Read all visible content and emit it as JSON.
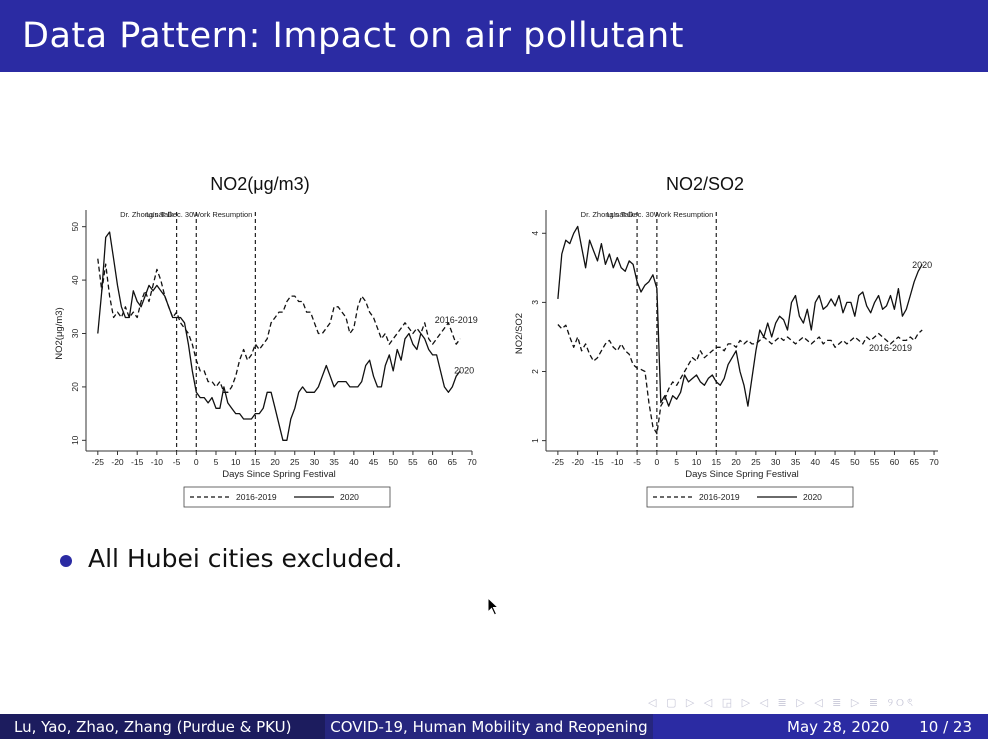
{
  "slide": {
    "title": "Data Pattern: Impact on air pollutant",
    "bullet": "All Hubei cities excluded.",
    "nav_icons": "◁ ▢ ▷ ◁ ◲ ▷ ◁ ≣ ▷ ◁ ≣ ▷   ≣   ୨୦ৎ"
  },
  "footer": {
    "authors": "Lu, Yao, Zhao, Zhang (Purdue & PKU)",
    "talk_title": "COVID-19, Human Mobility and Reopening",
    "date": "May 28, 2020",
    "page": "10 / 23"
  },
  "colors": {
    "header_bar": "#2b2ba3",
    "footer_left": "#1c1c5e",
    "footer_mid": "#26267e",
    "footer_right": "#2b2ba3",
    "bullet": "#2b2ba3"
  },
  "chart_data": [
    {
      "type": "line",
      "title": "NO2(μg/m3)",
      "xlabel": "Days Since Spring Festival",
      "ylabel": "NO2(μg/m3)",
      "xlim": [
        -28,
        70
      ],
      "ylim": [
        8,
        52
      ],
      "xticks": [
        -25,
        -20,
        -15,
        -10,
        -5,
        0,
        5,
        10,
        15,
        20,
        25,
        30,
        35,
        40,
        45,
        50,
        55,
        60,
        65,
        70
      ],
      "yticks": [
        10,
        20,
        30,
        40,
        50
      ],
      "annotations": [
        {
          "x": -5,
          "text": "Dr. Zhong's Talk"
        },
        {
          "x": 0,
          "text": "Lunar Dec. 30"
        },
        {
          "x": 15,
          "text": "Work Resumption"
        }
      ],
      "series_labels": [
        {
          "text": "2016-2019",
          "x": 66,
          "y": 32
        },
        {
          "text": "2020",
          "x": 68,
          "y": 22.5
        }
      ],
      "legend": [
        "2016-2019",
        "2020"
      ],
      "legend_position": "bottom",
      "series": [
        {
          "name": "2016-2019",
          "style": "dashed",
          "x": [
            -25,
            -24,
            -23,
            -22,
            -21,
            -20,
            -19,
            -18,
            -17,
            -16,
            -15,
            -14,
            -13,
            -12,
            -11,
            -10,
            -9,
            -8,
            -7,
            -6,
            -5,
            -4,
            -3,
            -2,
            -1,
            0,
            1,
            2,
            3,
            4,
            5,
            6,
            7,
            8,
            9,
            10,
            11,
            12,
            13,
            14,
            15,
            16,
            17,
            18,
            19,
            20,
            21,
            22,
            23,
            24,
            25,
            26,
            27,
            28,
            29,
            30,
            31,
            32,
            33,
            34,
            35,
            36,
            37,
            38,
            39,
            40,
            41,
            42,
            43,
            44,
            45,
            46,
            47,
            48,
            49,
            50,
            51,
            52,
            53,
            54,
            55,
            56,
            57,
            58,
            59,
            60,
            61,
            62,
            63,
            64,
            65,
            66,
            67
          ],
          "values": [
            44,
            38,
            43,
            37,
            33,
            34,
            33,
            35,
            33,
            34,
            33,
            36,
            38,
            36,
            39,
            42,
            40,
            37,
            35,
            33,
            34,
            32,
            31,
            30,
            28,
            25,
            23,
            23,
            21,
            21,
            20,
            21,
            19,
            19,
            20,
            22,
            25,
            27,
            25,
            26,
            28,
            27,
            28,
            29,
            32,
            33,
            34,
            34,
            36,
            37,
            37,
            36,
            36,
            34,
            34,
            32,
            30,
            30,
            31,
            32,
            35,
            35,
            34,
            33,
            30,
            31,
            35,
            37,
            36,
            34,
            33,
            31,
            29,
            30,
            28,
            29,
            30,
            31,
            32,
            31,
            30,
            31,
            30,
            32,
            29,
            28,
            29,
            30,
            31,
            32,
            30,
            28,
            29
          ]
        },
        {
          "name": "2020",
          "style": "solid",
          "x": [
            -25,
            -24,
            -23,
            -22,
            -21,
            -20,
            -19,
            -18,
            -17,
            -16,
            -15,
            -14,
            -13,
            -12,
            -11,
            -10,
            -9,
            -8,
            -7,
            -6,
            -5,
            -4,
            -3,
            -2,
            -1,
            0,
            1,
            2,
            3,
            4,
            5,
            6,
            7,
            8,
            9,
            10,
            11,
            12,
            13,
            14,
            15,
            16,
            17,
            18,
            19,
            20,
            21,
            22,
            23,
            24,
            25,
            26,
            27,
            28,
            29,
            30,
            31,
            32,
            33,
            34,
            35,
            36,
            37,
            38,
            39,
            40,
            41,
            42,
            43,
            44,
            45,
            46,
            47,
            48,
            49,
            50,
            51,
            52,
            53,
            54,
            55,
            56,
            57,
            58,
            59,
            60,
            61,
            62,
            63,
            64,
            65,
            66,
            67
          ],
          "values": [
            30,
            38,
            48,
            49,
            44,
            39,
            35,
            33,
            33,
            38,
            36,
            35,
            37,
            39,
            38,
            39,
            38,
            37,
            35,
            33,
            33,
            33,
            32,
            28,
            23,
            19,
            18,
            18,
            17,
            18,
            16,
            16,
            20,
            17,
            16,
            15,
            15,
            14,
            14,
            14,
            15,
            15,
            16,
            19,
            19,
            16,
            13,
            10,
            10,
            14,
            16,
            19,
            20,
            19,
            19,
            19,
            20,
            22,
            24,
            22,
            20,
            21,
            21,
            21,
            20,
            20,
            20,
            21,
            24,
            25,
            22,
            20,
            20,
            24,
            26,
            23,
            27,
            25,
            29,
            30,
            28,
            27,
            30,
            29,
            27,
            26,
            26,
            23,
            20,
            19,
            20,
            22,
            23
          ]
        }
      ]
    },
    {
      "type": "line",
      "title": "NO2/SO2",
      "xlabel": "Days Since Spring Festival",
      "ylabel": "NO2/SO2",
      "xlim": [
        -28,
        71
      ],
      "ylim": [
        0.85,
        4.25
      ],
      "xticks": [
        -25,
        -20,
        -15,
        -10,
        -5,
        0,
        5,
        10,
        15,
        20,
        25,
        30,
        35,
        40,
        45,
        50,
        55,
        60,
        65,
        70
      ],
      "yticks": [
        1,
        2,
        3,
        4
      ],
      "annotations": [
        {
          "x": -5,
          "text": "Dr. Zhong's Talk"
        },
        {
          "x": 0,
          "text": "Lunar Dec. 30"
        },
        {
          "x": 15,
          "text": "Work Resumption"
        }
      ],
      "series_labels": [
        {
          "text": "2020",
          "x": 67,
          "y": 3.5
        },
        {
          "text": "2016-2019",
          "x": 59,
          "y": 2.3
        }
      ],
      "legend": [
        "2016-2019",
        "2020"
      ],
      "legend_position": "bottom",
      "series": [
        {
          "name": "2016-2019",
          "style": "dashed",
          "x": [
            -25,
            -24,
            -23,
            -22,
            -21,
            -20,
            -19,
            -18,
            -17,
            -16,
            -15,
            -14,
            -13,
            -12,
            -11,
            -10,
            -9,
            -8,
            -7,
            -6,
            -5,
            -4,
            -3,
            -2,
            -1,
            0,
            1,
            2,
            3,
            4,
            5,
            6,
            7,
            8,
            9,
            10,
            11,
            12,
            13,
            14,
            15,
            16,
            17,
            18,
            19,
            20,
            21,
            22,
            23,
            24,
            25,
            26,
            27,
            28,
            29,
            30,
            31,
            32,
            33,
            34,
            35,
            36,
            37,
            38,
            39,
            40,
            41,
            42,
            43,
            44,
            45,
            46,
            47,
            48,
            49,
            50,
            51,
            52,
            53,
            54,
            55,
            56,
            57,
            58,
            59,
            60,
            61,
            62,
            63,
            64,
            65,
            66,
            67
          ],
          "values": [
            2.68,
            2.62,
            2.67,
            2.5,
            2.35,
            2.5,
            2.3,
            2.4,
            2.25,
            2.15,
            2.2,
            2.3,
            2.4,
            2.45,
            2.35,
            2.3,
            2.4,
            2.3,
            2.25,
            2.1,
            2.05,
            2.03,
            2.0,
            1.55,
            1.2,
            1.1,
            1.5,
            1.6,
            1.75,
            1.85,
            1.8,
            1.9,
            2.0,
            2.1,
            2.2,
            2.15,
            2.3,
            2.2,
            2.25,
            2.3,
            2.35,
            2.35,
            2.3,
            2.4,
            2.4,
            2.35,
            2.45,
            2.4,
            2.45,
            2.4,
            2.4,
            2.45,
            2.5,
            2.45,
            2.4,
            2.45,
            2.5,
            2.45,
            2.5,
            2.45,
            2.4,
            2.45,
            2.5,
            2.45,
            2.4,
            2.45,
            2.5,
            2.4,
            2.45,
            2.45,
            2.35,
            2.4,
            2.45,
            2.4,
            2.45,
            2.5,
            2.45,
            2.4,
            2.5,
            2.45,
            2.5,
            2.55,
            2.5,
            2.45,
            2.4,
            2.45,
            2.5,
            2.45,
            2.45,
            2.5,
            2.45,
            2.55,
            2.6
          ]
        },
        {
          "name": "2020",
          "style": "solid",
          "x": [
            -25,
            -24,
            -23,
            -22,
            -21,
            -20,
            -19,
            -18,
            -17,
            -16,
            -15,
            -14,
            -13,
            -12,
            -11,
            -10,
            -9,
            -8,
            -7,
            -6,
            -5,
            -4,
            -3,
            -2,
            -1,
            0,
            1,
            2,
            3,
            4,
            5,
            6,
            7,
            8,
            9,
            10,
            11,
            12,
            13,
            14,
            15,
            16,
            17,
            18,
            19,
            20,
            21,
            22,
            23,
            24,
            25,
            26,
            27,
            28,
            29,
            30,
            31,
            32,
            33,
            34,
            35,
            36,
            37,
            38,
            39,
            40,
            41,
            42,
            43,
            44,
            45,
            46,
            47,
            48,
            49,
            50,
            51,
            52,
            53,
            54,
            55,
            56,
            57,
            58,
            59,
            60,
            61,
            62,
            63,
            64,
            65,
            66,
            67
          ],
          "values": [
            3.05,
            3.7,
            3.9,
            3.85,
            4.0,
            4.1,
            3.8,
            3.5,
            3.9,
            3.75,
            3.6,
            3.85,
            3.55,
            3.7,
            3.5,
            3.65,
            3.5,
            3.45,
            3.6,
            3.55,
            3.3,
            3.15,
            3.25,
            3.3,
            3.4,
            3.2,
            1.55,
            1.65,
            1.5,
            1.65,
            1.6,
            1.7,
            1.95,
            1.85,
            1.9,
            1.95,
            1.85,
            1.8,
            1.9,
            1.95,
            1.85,
            1.8,
            1.9,
            2.1,
            2.2,
            2.3,
            2.0,
            1.8,
            1.5,
            1.9,
            2.3,
            2.6,
            2.5,
            2.7,
            2.5,
            2.7,
            2.8,
            2.75,
            2.6,
            3.0,
            3.1,
            2.8,
            2.7,
            2.9,
            2.6,
            3.0,
            3.1,
            2.9,
            2.95,
            3.05,
            2.95,
            3.1,
            2.85,
            3.0,
            3.0,
            2.8,
            3.1,
            3.15,
            2.95,
            2.85,
            3.0,
            3.1,
            2.9,
            2.95,
            3.1,
            2.9,
            3.2,
            2.8,
            2.9,
            3.1,
            3.3,
            3.45,
            3.55
          ]
        }
      ]
    }
  ]
}
